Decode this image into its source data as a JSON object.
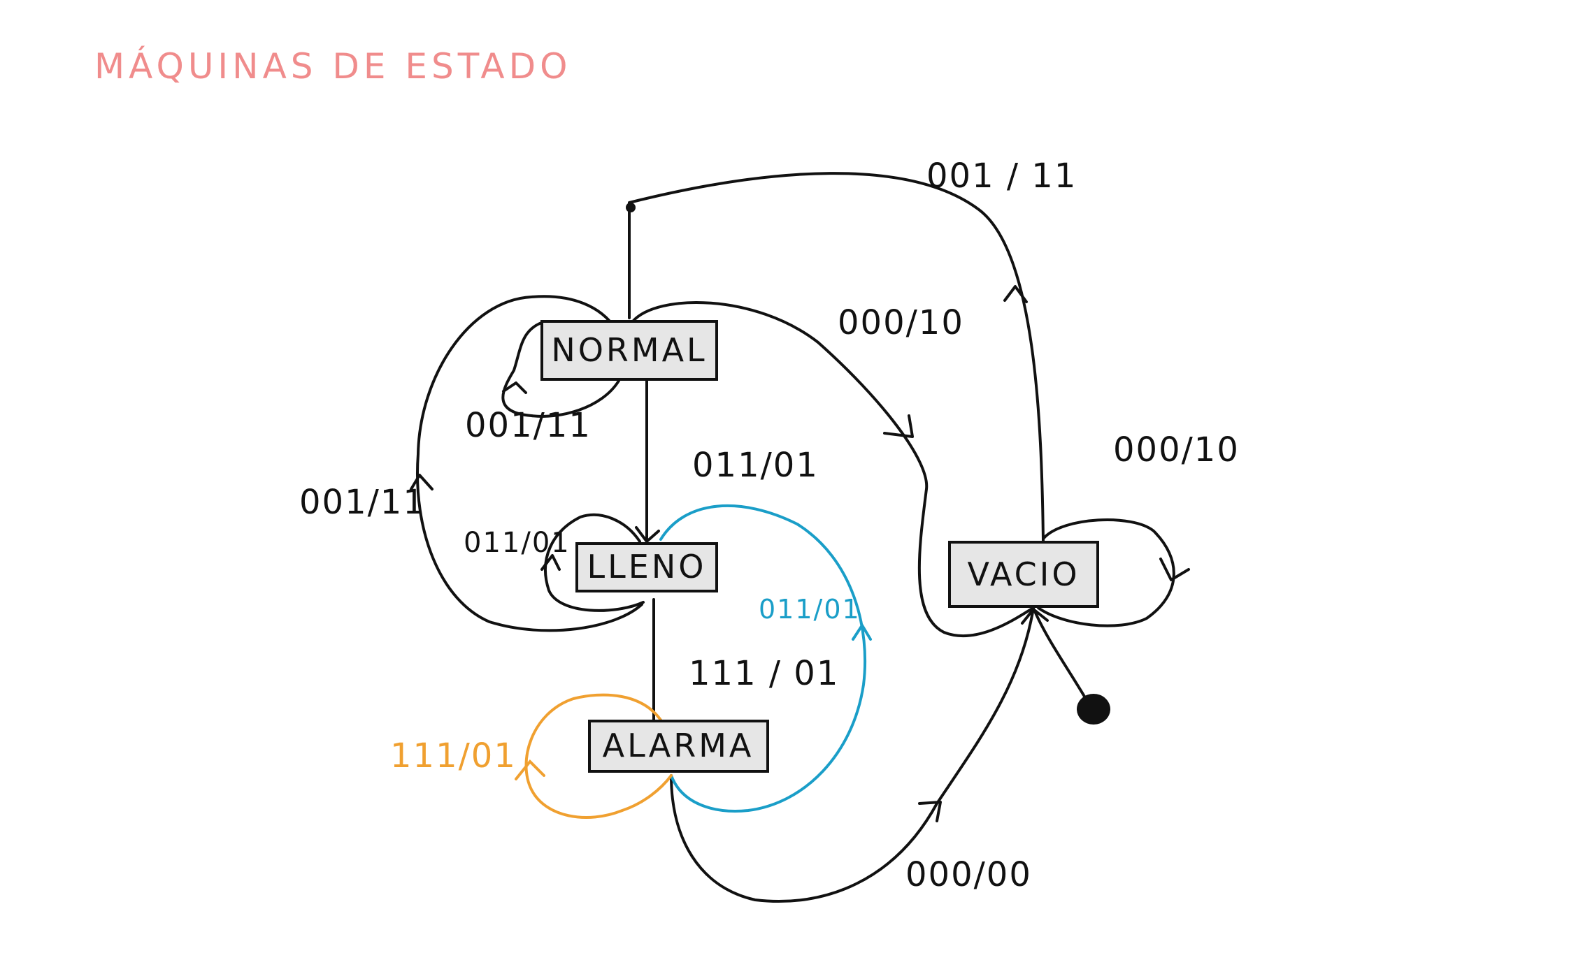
{
  "title": "MÁQUINAS DE ESTADO",
  "colors": {
    "title": "#f08c8c",
    "ink": "#111111",
    "box_fill": "#e6e6e6",
    "blue": "#1a9ec8",
    "orange": "#f0a030"
  },
  "states": {
    "normal": "NORMAL",
    "lleno": "LLENO",
    "alarma": "ALARMA",
    "vacio": "VACIO"
  },
  "transitions": {
    "normal_to_vacio_top": "001 / 11",
    "normal_to_vacio": "000/10",
    "vacio_self": "000/10",
    "normal_self": "001/11",
    "lleno_to_normal": "001/11",
    "normal_to_lleno": "011/01",
    "lleno_self": "011/01",
    "alarma_to_lleno": "011/01",
    "lleno_to_alarma": "111 / 01",
    "alarma_self": "111/01",
    "alarma_to_vacio": "000/00"
  }
}
